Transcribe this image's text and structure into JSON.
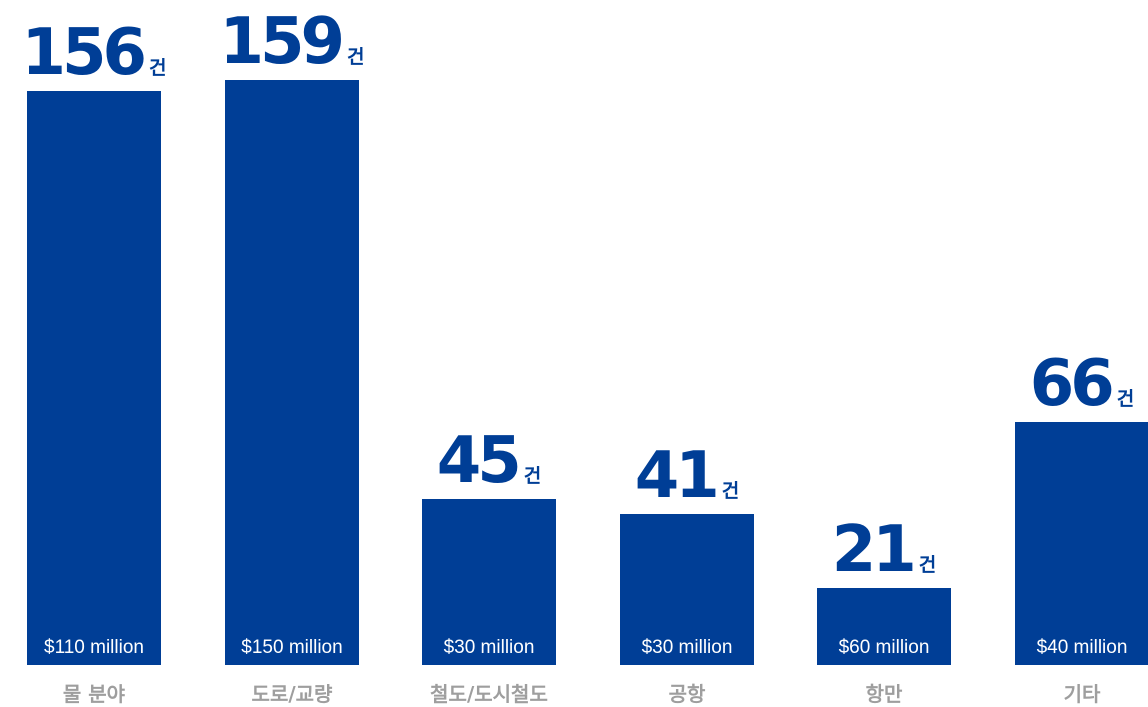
{
  "chart_data": {
    "type": "bar",
    "categories": [
      "물 분야",
      "도로/교량",
      "철도/도시철도",
      "공항",
      "항만",
      "기타"
    ],
    "values": [
      156,
      159,
      45,
      41,
      21,
      66
    ],
    "value_unit": "건",
    "bar_amounts": [
      "$110 million",
      "$150 million",
      "$30 million",
      "$30 million",
      "$60 million",
      "$40 million"
    ],
    "title": "",
    "xlabel": "",
    "ylabel": "",
    "ylim": [
      0,
      159
    ],
    "grid": false,
    "legend": "none",
    "colors": {
      "bar": "#003e96",
      "value_text": "#003e96",
      "category_text": "#9e9e9e",
      "amount_text": "#ffffff"
    }
  }
}
